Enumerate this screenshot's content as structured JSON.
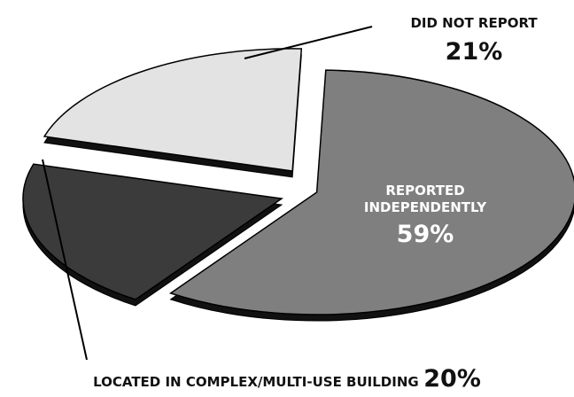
{
  "chart_data": {
    "type": "pie",
    "categories": [
      "REPORTED INDEPENDENTLY",
      "LOCATED IN COMPLEX/MULTI-USE BUILDING",
      "DID NOT REPORT"
    ],
    "values": [
      59,
      20,
      21
    ],
    "value_labels": [
      "59%",
      "20%",
      "21%"
    ],
    "colors": [
      "#7f7f7f",
      "#3b3b3b",
      "#e3e3e3"
    ]
  }
}
